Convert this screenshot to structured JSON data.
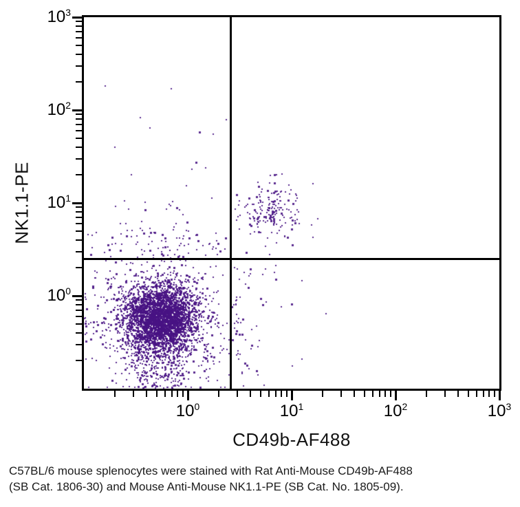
{
  "figure": {
    "xlabel": "CD49b-AF488",
    "ylabel": "NK1.1-PE"
  },
  "caption": {
    "line1": "C57BL/6 mouse splenocytes were stained with Rat Anti-Mouse CD49b-AF488",
    "line2": "(SB Cat. 1806-30) and Mouse Anti-Mouse NK1.1-PE (SB Cat. No. 1805-09)."
  },
  "chart_data": {
    "type": "scatter",
    "title": "",
    "xlabel": "CD49b-AF488",
    "ylabel": "NK1.1-PE",
    "x_scale": "log",
    "y_scale": "log",
    "x_range": [
      0.1,
      1000
    ],
    "y_range": [
      0.1,
      1000
    ],
    "axis_exponent_range": [
      -1,
      3
    ],
    "labeled_exponents": [
      0,
      1,
      2,
      3
    ],
    "x_tick_labels": [
      "10⁰",
      "10¹",
      "10²",
      "10³"
    ],
    "y_tick_labels": [
      "10⁰",
      "10¹",
      "10²",
      "10³"
    ],
    "grid": false,
    "legend": false,
    "point_color": "#471283",
    "axis_color": "#000000",
    "quadrant_gates": {
      "x": 2.6,
      "y": 2.5
    },
    "seed": 42,
    "populations": [
      {
        "name": "negative-splenocyte-core",
        "kind": "gauss",
        "count": 2900,
        "center_log10": [
          -0.26,
          -0.25
        ],
        "sigma_log10": [
          0.17,
          0.18
        ]
      },
      {
        "name": "negative-splenocyte-halo",
        "kind": "gauss",
        "count": 650,
        "center_log10": [
          -0.26,
          -0.23
        ],
        "sigma_log10": [
          0.3,
          0.32
        ]
      },
      {
        "name": "negative-splenocyte-spray",
        "kind": "gauss",
        "count": 140,
        "center_log10": [
          -0.24,
          -0.12
        ],
        "sigma_log10": [
          0.45,
          0.55
        ]
      },
      {
        "name": "negative-low-tail",
        "kind": "tail",
        "count": 260,
        "x_center_log10": -0.25,
        "x_sigma_log10": 0.22,
        "y_min_log10": -1.0,
        "y_max_log10": -0.45
      },
      {
        "name": "nk-double-positive",
        "kind": "gauss",
        "count": 160,
        "center_log10": [
          0.8,
          0.93
        ],
        "sigma_log10": [
          0.13,
          0.15
        ]
      },
      {
        "name": "nk-double-positive-spray",
        "kind": "gauss",
        "count": 24,
        "center_log10": [
          0.8,
          0.92
        ],
        "sigma_log10": [
          0.3,
          0.32
        ]
      },
      {
        "name": "upper-left-scatter",
        "kind": "ul",
        "count": 55,
        "x_min_log10": -0.95,
        "x_max_log10": 0.38,
        "x_skew": 0.7,
        "y_base_log10": 0.43,
        "y_exp_scale": 0.33,
        "y_cap_log10": 1.9
      },
      {
        "name": "lower-right-scatter",
        "kind": "lr",
        "count": 52,
        "x_base_log10": 0.44,
        "x_exp_scale": 0.22,
        "x_cap_log10": 1.1,
        "y_min_log10": -0.85,
        "y_max_log10": 0.36
      }
    ],
    "outliers": [
      [
        0.16,
        181
      ],
      [
        0.69,
        170
      ],
      [
        0.35,
        83
      ],
      [
        0.43,
        64
      ],
      [
        0.2,
        40
      ],
      [
        1.1,
        23
      ],
      [
        16,
        16
      ],
      [
        10,
        0.81
      ],
      [
        0.11,
        4.6
      ],
      [
        0.12,
        3.3
      ]
    ]
  }
}
